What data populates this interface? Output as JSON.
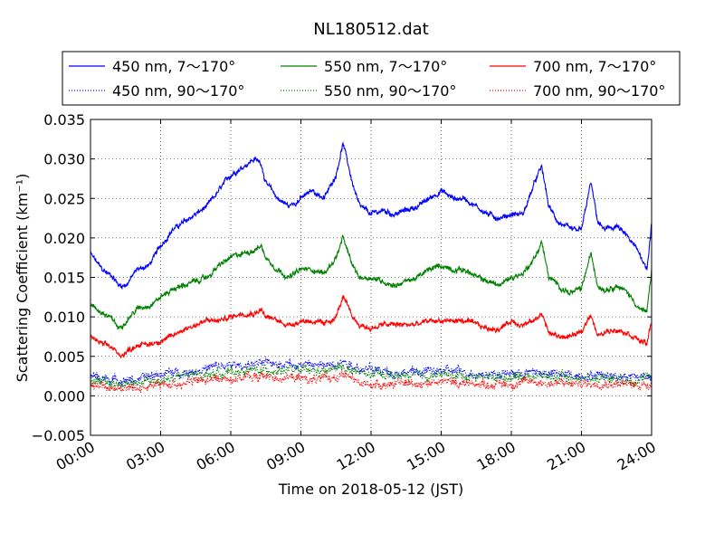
{
  "chart_data": {
    "type": "line",
    "title": "NL180512.dat",
    "xlabel": "Time on 2018-05-12 (JST)",
    "ylabel": "Scattering Coefficient (km⁻¹)",
    "xlim": [
      0,
      24
    ],
    "ylim": [
      -0.005,
      0.035
    ],
    "x_tick_labels": [
      "00:00",
      "03:00",
      "06:00",
      "09:00",
      "12:00",
      "15:00",
      "18:00",
      "21:00",
      "24:00"
    ],
    "y_tick_labels": [
      "−0.005",
      "0.000",
      "0.005",
      "0.010",
      "0.015",
      "0.020",
      "0.025",
      "0.030",
      "0.035"
    ],
    "grid": true,
    "legend_position": "top, above plot, 3 columns",
    "series": [
      {
        "name": "450 nm, 7～170°",
        "color": "#0000ff",
        "style": "solid",
        "x": [
          0.0,
          0.5,
          1.0,
          1.2,
          1.5,
          2.0,
          2.5,
          3.0,
          3.5,
          4.0,
          4.5,
          5.0,
          5.5,
          6.0,
          6.5,
          7.0,
          7.3,
          7.5,
          8.0,
          8.5,
          9.0,
          9.5,
          10.0,
          10.5,
          10.8,
          11.2,
          11.5,
          12.0,
          12.5,
          13.0,
          13.5,
          14.0,
          14.5,
          15.0,
          15.5,
          16.0,
          16.5,
          17.0,
          17.5,
          18.0,
          18.5,
          19.0,
          19.3,
          19.6,
          20.0,
          20.5,
          21.0,
          21.4,
          21.7,
          22.0,
          22.5,
          23.0,
          23.5,
          23.8,
          24.0
        ],
        "y": [
          0.018,
          0.016,
          0.015,
          0.014,
          0.014,
          0.016,
          0.0165,
          0.019,
          0.021,
          0.022,
          0.023,
          0.024,
          0.026,
          0.028,
          0.029,
          0.03,
          0.0295,
          0.027,
          0.025,
          0.024,
          0.025,
          0.026,
          0.025,
          0.028,
          0.032,
          0.027,
          0.024,
          0.023,
          0.0235,
          0.023,
          0.0235,
          0.024,
          0.025,
          0.026,
          0.025,
          0.025,
          0.024,
          0.023,
          0.0225,
          0.023,
          0.023,
          0.027,
          0.029,
          0.024,
          0.022,
          0.021,
          0.021,
          0.027,
          0.022,
          0.021,
          0.0215,
          0.02,
          0.018,
          0.016,
          0.022
        ]
      },
      {
        "name": "550 nm, 7～170°",
        "color": "#008000",
        "style": "solid",
        "x": [
          0.0,
          0.5,
          1.0,
          1.2,
          1.5,
          2.0,
          2.5,
          3.0,
          3.5,
          4.0,
          4.5,
          5.0,
          5.5,
          6.0,
          6.5,
          7.0,
          7.3,
          7.5,
          8.0,
          8.5,
          9.0,
          9.5,
          10.0,
          10.5,
          10.8,
          11.2,
          11.5,
          12.0,
          12.5,
          13.0,
          13.5,
          14.0,
          14.5,
          15.0,
          15.5,
          16.0,
          16.5,
          17.0,
          17.5,
          18.0,
          18.5,
          19.0,
          19.3,
          19.6,
          20.0,
          20.5,
          21.0,
          21.4,
          21.7,
          22.0,
          22.5,
          23.0,
          23.5,
          23.8,
          24.0
        ],
        "y": [
          0.0115,
          0.0105,
          0.0095,
          0.0085,
          0.0095,
          0.011,
          0.0115,
          0.0125,
          0.0135,
          0.014,
          0.0145,
          0.015,
          0.0165,
          0.0175,
          0.018,
          0.0185,
          0.019,
          0.0175,
          0.016,
          0.015,
          0.016,
          0.016,
          0.0155,
          0.0175,
          0.02,
          0.0165,
          0.015,
          0.015,
          0.0145,
          0.014,
          0.0145,
          0.015,
          0.016,
          0.0165,
          0.016,
          0.016,
          0.015,
          0.0145,
          0.014,
          0.015,
          0.0155,
          0.0175,
          0.0195,
          0.015,
          0.014,
          0.013,
          0.0135,
          0.018,
          0.014,
          0.0135,
          0.014,
          0.013,
          0.011,
          0.0105,
          0.016
        ]
      },
      {
        "name": "700 nm, 7～170°",
        "color": "#ff0000",
        "style": "solid",
        "x": [
          0.0,
          0.5,
          1.0,
          1.2,
          1.5,
          2.0,
          2.5,
          3.0,
          3.5,
          4.0,
          4.5,
          5.0,
          5.5,
          6.0,
          6.5,
          7.0,
          7.3,
          7.5,
          8.0,
          8.5,
          9.0,
          9.5,
          10.0,
          10.5,
          10.8,
          11.2,
          11.5,
          12.0,
          12.5,
          13.0,
          13.5,
          14.0,
          14.5,
          15.0,
          15.5,
          16.0,
          16.5,
          17.0,
          17.5,
          18.0,
          18.5,
          19.0,
          19.3,
          19.6,
          20.0,
          20.5,
          21.0,
          21.4,
          21.7,
          22.0,
          22.5,
          23.0,
          23.5,
          23.8,
          24.0
        ],
        "y": [
          0.0075,
          0.0065,
          0.006,
          0.005,
          0.0055,
          0.0065,
          0.0065,
          0.007,
          0.0075,
          0.0085,
          0.009,
          0.0095,
          0.0095,
          0.01,
          0.0105,
          0.0105,
          0.011,
          0.01,
          0.0095,
          0.009,
          0.0095,
          0.0095,
          0.009,
          0.01,
          0.0125,
          0.01,
          0.009,
          0.0085,
          0.009,
          0.009,
          0.009,
          0.009,
          0.0095,
          0.0095,
          0.0095,
          0.0095,
          0.009,
          0.0085,
          0.0085,
          0.0095,
          0.009,
          0.0095,
          0.0105,
          0.008,
          0.0075,
          0.0075,
          0.008,
          0.0105,
          0.0075,
          0.008,
          0.0085,
          0.008,
          0.007,
          0.0065,
          0.0095
        ]
      },
      {
        "name": "450 nm, 90～170°",
        "color": "#0000ff",
        "style": "dotted",
        "x": [
          0,
          1,
          2,
          3,
          4,
          5,
          6,
          7,
          8,
          9,
          10,
          10.8,
          11.5,
          12,
          13,
          14,
          15,
          16,
          17,
          18,
          19,
          20,
          21,
          22,
          23,
          24
        ],
        "y": [
          0.0025,
          0.002,
          0.002,
          0.0028,
          0.003,
          0.0035,
          0.0038,
          0.004,
          0.0042,
          0.004,
          0.0038,
          0.0045,
          0.0035,
          0.0033,
          0.003,
          0.003,
          0.0032,
          0.003,
          0.0028,
          0.0028,
          0.003,
          0.0027,
          0.0026,
          0.0027,
          0.0025,
          0.0025
        ]
      },
      {
        "name": "550 nm, 90～170°",
        "color": "#008000",
        "style": "dotted",
        "x": [
          0,
          1,
          2,
          3,
          4,
          5,
          6,
          7,
          8,
          9,
          10,
          10.8,
          11.5,
          12,
          13,
          14,
          15,
          16,
          17,
          18,
          19,
          20,
          21,
          22,
          23,
          24
        ],
        "y": [
          0.002,
          0.0015,
          0.0015,
          0.002,
          0.0025,
          0.0028,
          0.003,
          0.0032,
          0.0033,
          0.0032,
          0.003,
          0.0037,
          0.0028,
          0.0027,
          0.0025,
          0.0025,
          0.0027,
          0.0025,
          0.0024,
          0.0024,
          0.0026,
          0.0023,
          0.0022,
          0.0024,
          0.0021,
          0.0022
        ]
      },
      {
        "name": "700 nm, 90～170°",
        "color": "#ff0000",
        "style": "dotted",
        "x": [
          0,
          1,
          2,
          3,
          4,
          5,
          6,
          7,
          8,
          9,
          10,
          10.8,
          11.5,
          12,
          13,
          14,
          15,
          16,
          17,
          18,
          19,
          20,
          21,
          22,
          23,
          24
        ],
        "y": [
          0.0015,
          0.001,
          0.001,
          0.0013,
          0.0017,
          0.002,
          0.0022,
          0.0024,
          0.0024,
          0.0022,
          0.002,
          0.0028,
          0.0015,
          0.0015,
          0.0015,
          0.0016,
          0.0018,
          0.0016,
          0.0015,
          0.0015,
          0.0018,
          0.0015,
          0.0015,
          0.0017,
          0.0014,
          0.0015
        ]
      }
    ]
  }
}
